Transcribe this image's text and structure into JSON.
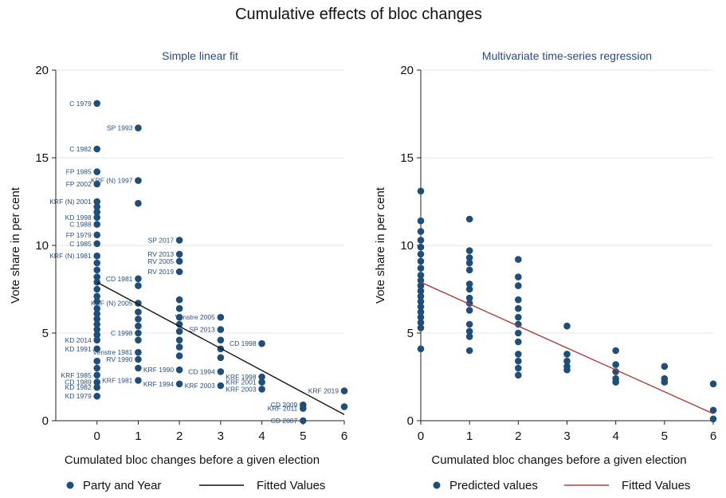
{
  "figure_title": "Cumulative effects of bloc changes",
  "colors": {
    "points": "#1f4e79",
    "fit_left": "#111111",
    "fit_right": "#a8403f",
    "grid": "#e4e4e4"
  },
  "chart_data": [
    {
      "type": "scatter",
      "title": "Simple linear fit",
      "xlabel": "Cumulated bloc changes before a given election",
      "ylabel": "Vote share in per cent",
      "xlim": [
        -1,
        6
      ],
      "ylim": [
        0,
        20
      ],
      "xticks": [
        0,
        1,
        2,
        3,
        4,
        5,
        6
      ],
      "yticks": [
        0,
        5,
        10,
        15,
        20
      ],
      "grid": true,
      "legend": {
        "position": "bottom",
        "entries": [
          "Party and Year",
          "Fitted Values"
        ]
      },
      "series": [
        {
          "name": "Party and Year",
          "kind": "points",
          "points": [
            {
              "x": 0,
              "y": 18.1,
              "label": "C 1979"
            },
            {
              "x": 0,
              "y": 15.5,
              "label": "C 1982"
            },
            {
              "x": 0,
              "y": 14.2,
              "label": "FP 1985"
            },
            {
              "x": 0,
              "y": 13.5,
              "label": "FP 2002"
            },
            {
              "x": 0,
              "y": 12.5,
              "label": "KRF (N) 2001"
            },
            {
              "x": 0,
              "y": 12.2,
              "label": ""
            },
            {
              "x": 0,
              "y": 11.9,
              "label": ""
            },
            {
              "x": 0,
              "y": 11.6,
              "label": "KD 1998"
            },
            {
              "x": 0,
              "y": 11.2,
              "label": "C 1988"
            },
            {
              "x": 0,
              "y": 10.6,
              "label": "FP 1979"
            },
            {
              "x": 0,
              "y": 10.1,
              "label": "C 1985"
            },
            {
              "x": 0,
              "y": 9.4,
              "label": "KRF (N) 1981"
            },
            {
              "x": 0,
              "y": 9.0,
              "label": ""
            },
            {
              "x": 0,
              "y": 8.6,
              "label": ""
            },
            {
              "x": 0,
              "y": 8.2,
              "label": ""
            },
            {
              "x": 0,
              "y": 7.9,
              "label": ""
            },
            {
              "x": 0,
              "y": 7.5,
              "label": ""
            },
            {
              "x": 0,
              "y": 7.1,
              "label": ""
            },
            {
              "x": 0,
              "y": 6.8,
              "label": ""
            },
            {
              "x": 0,
              "y": 6.4,
              "label": ""
            },
            {
              "x": 0,
              "y": 6.1,
              "label": ""
            },
            {
              "x": 0,
              "y": 5.8,
              "label": ""
            },
            {
              "x": 0,
              "y": 5.5,
              "label": ""
            },
            {
              "x": 0,
              "y": 5.2,
              "label": ""
            },
            {
              "x": 0,
              "y": 4.9,
              "label": ""
            },
            {
              "x": 0,
              "y": 4.6,
              "label": "KD 2014"
            },
            {
              "x": 0,
              "y": 4.1,
              "label": "KD 1991"
            },
            {
              "x": 0,
              "y": 3.4,
              "label": ""
            },
            {
              "x": 0,
              "y": 3.0,
              "label": ""
            },
            {
              "x": 0,
              "y": 2.6,
              "label": "KRF 1985"
            },
            {
              "x": 0,
              "y": 2.2,
              "label": "CD 1989"
            },
            {
              "x": 0,
              "y": 1.9,
              "label": "KD 1982"
            },
            {
              "x": 0,
              "y": 1.4,
              "label": "KD 1979"
            },
            {
              "x": 1,
              "y": 16.7,
              "label": "SP 1993"
            },
            {
              "x": 1,
              "y": 13.7,
              "label": "KRF (N) 1997"
            },
            {
              "x": 1,
              "y": 12.4,
              "label": ""
            },
            {
              "x": 1,
              "y": 8.1,
              "label": "CD 1981"
            },
            {
              "x": 1,
              "y": 7.7,
              "label": ""
            },
            {
              "x": 1,
              "y": 6.7,
              "label": "KRF (N) 2005"
            },
            {
              "x": 1,
              "y": 6.2,
              "label": ""
            },
            {
              "x": 1,
              "y": 5.8,
              "label": ""
            },
            {
              "x": 1,
              "y": 5.4,
              "label": ""
            },
            {
              "x": 1,
              "y": 5.0,
              "label": "C 1998"
            },
            {
              "x": 1,
              "y": 4.6,
              "label": ""
            },
            {
              "x": 1,
              "y": 3.9,
              "label": "Venstre 1981"
            },
            {
              "x": 1,
              "y": 3.5,
              "label": "RV 1990"
            },
            {
              "x": 1,
              "y": 3.0,
              "label": ""
            },
            {
              "x": 1,
              "y": 2.3,
              "label": "KRF 1981"
            },
            {
              "x": 2,
              "y": 10.3,
              "label": "SP 2017"
            },
            {
              "x": 2,
              "y": 9.5,
              "label": "RV 2013"
            },
            {
              "x": 2,
              "y": 9.1,
              "label": "RV 2005"
            },
            {
              "x": 2,
              "y": 8.5,
              "label": "RV 2019"
            },
            {
              "x": 2,
              "y": 6.9,
              "label": ""
            },
            {
              "x": 2,
              "y": 6.4,
              "label": ""
            },
            {
              "x": 2,
              "y": 5.9,
              "label": ""
            },
            {
              "x": 2,
              "y": 5.5,
              "label": ""
            },
            {
              "x": 2,
              "y": 5.1,
              "label": ""
            },
            {
              "x": 2,
              "y": 4.6,
              "label": ""
            },
            {
              "x": 2,
              "y": 4.2,
              "label": ""
            },
            {
              "x": 2,
              "y": 3.7,
              "label": ""
            },
            {
              "x": 2,
              "y": 2.9,
              "label": "KRF 1990"
            },
            {
              "x": 2,
              "y": 2.1,
              "label": "KRF 1994"
            },
            {
              "x": 3,
              "y": 5.9,
              "label": "Venstre 2005"
            },
            {
              "x": 3,
              "y": 5.2,
              "label": "SP 2013"
            },
            {
              "x": 3,
              "y": 4.6,
              "label": ""
            },
            {
              "x": 3,
              "y": 4.1,
              "label": ""
            },
            {
              "x": 3,
              "y": 3.6,
              "label": ""
            },
            {
              "x": 3,
              "y": 2.8,
              "label": "CD 1994"
            },
            {
              "x": 3,
              "y": 2.0,
              "label": "KRF 2003"
            },
            {
              "x": 4,
              "y": 4.4,
              "label": "CD 1998"
            },
            {
              "x": 4,
              "y": 2.5,
              "label": "KRF 1998"
            },
            {
              "x": 4,
              "y": 2.2,
              "label": "KRF 2001"
            },
            {
              "x": 4,
              "y": 1.8,
              "label": "KRF 2003"
            },
            {
              "x": 5,
              "y": 0.9,
              "label": "CD 2009"
            },
            {
              "x": 5,
              "y": 0.7,
              "label": "KRF 2011"
            },
            {
              "x": 5,
              "y": 0.0,
              "label": "CD 2007"
            },
            {
              "x": 6,
              "y": 1.7,
              "label": "KRF 2019"
            },
            {
              "x": 6,
              "y": 0.8,
              "label": ""
            }
          ]
        },
        {
          "name": "Fitted Values",
          "kind": "line",
          "x": [
            0,
            6
          ],
          "y": [
            7.9,
            0.35
          ]
        }
      ]
    },
    {
      "type": "scatter",
      "title": "Multivariate time-series regression",
      "xlabel": "Cumulated bloc changes before a given election",
      "ylabel": "Vote share in per cent",
      "xlim": [
        0,
        6
      ],
      "ylim": [
        0,
        20
      ],
      "xticks": [
        0,
        1,
        2,
        3,
        4,
        5,
        6
      ],
      "yticks": [
        0,
        5,
        10,
        15,
        20
      ],
      "grid": true,
      "legend": {
        "position": "bottom",
        "entries": [
          "Predicted values",
          "Fitted Values"
        ]
      },
      "series": [
        {
          "name": "Predicted values",
          "kind": "points",
          "points": [
            {
              "x": 0,
              "y": 13.1
            },
            {
              "x": 0,
              "y": 11.4
            },
            {
              "x": 0,
              "y": 10.8
            },
            {
              "x": 0,
              "y": 10.3
            },
            {
              "x": 0,
              "y": 9.9
            },
            {
              "x": 0,
              "y": 9.5
            },
            {
              "x": 0,
              "y": 9.1
            },
            {
              "x": 0,
              "y": 8.7
            },
            {
              "x": 0,
              "y": 8.3
            },
            {
              "x": 0,
              "y": 8.0
            },
            {
              "x": 0,
              "y": 7.7
            },
            {
              "x": 0,
              "y": 7.4
            },
            {
              "x": 0,
              "y": 7.1
            },
            {
              "x": 0,
              "y": 6.8
            },
            {
              "x": 0,
              "y": 6.5
            },
            {
              "x": 0,
              "y": 6.2
            },
            {
              "x": 0,
              "y": 5.9
            },
            {
              "x": 0,
              "y": 5.6
            },
            {
              "x": 0,
              "y": 5.3
            },
            {
              "x": 0,
              "y": 4.1
            },
            {
              "x": 1,
              "y": 11.5
            },
            {
              "x": 1,
              "y": 9.7
            },
            {
              "x": 1,
              "y": 9.3
            },
            {
              "x": 1,
              "y": 9.0
            },
            {
              "x": 1,
              "y": 8.6
            },
            {
              "x": 1,
              "y": 7.8
            },
            {
              "x": 1,
              "y": 7.5
            },
            {
              "x": 1,
              "y": 7.0
            },
            {
              "x": 1,
              "y": 6.7
            },
            {
              "x": 1,
              "y": 6.3
            },
            {
              "x": 1,
              "y": 5.5
            },
            {
              "x": 1,
              "y": 5.1
            },
            {
              "x": 1,
              "y": 4.8
            },
            {
              "x": 1,
              "y": 4.0
            },
            {
              "x": 2,
              "y": 9.2
            },
            {
              "x": 2,
              "y": 8.2
            },
            {
              "x": 2,
              "y": 7.7
            },
            {
              "x": 2,
              "y": 6.9
            },
            {
              "x": 2,
              "y": 6.4
            },
            {
              "x": 2,
              "y": 5.9
            },
            {
              "x": 2,
              "y": 5.5
            },
            {
              "x": 2,
              "y": 5.0
            },
            {
              "x": 2,
              "y": 4.5
            },
            {
              "x": 2,
              "y": 3.8
            },
            {
              "x": 2,
              "y": 3.4
            },
            {
              "x": 2,
              "y": 3.0
            },
            {
              "x": 2,
              "y": 2.6
            },
            {
              "x": 3,
              "y": 5.4
            },
            {
              "x": 3,
              "y": 3.8
            },
            {
              "x": 3,
              "y": 3.4
            },
            {
              "x": 3,
              "y": 3.1
            },
            {
              "x": 3,
              "y": 2.9
            },
            {
              "x": 4,
              "y": 4.0
            },
            {
              "x": 4,
              "y": 3.2
            },
            {
              "x": 4,
              "y": 2.8
            },
            {
              "x": 4,
              "y": 2.4
            },
            {
              "x": 4,
              "y": 2.2
            },
            {
              "x": 5,
              "y": 3.1
            },
            {
              "x": 5,
              "y": 2.4
            },
            {
              "x": 5,
              "y": 2.2
            },
            {
              "x": 6,
              "y": 2.1
            },
            {
              "x": 6,
              "y": 0.6
            },
            {
              "x": 6,
              "y": 0.1
            }
          ]
        },
        {
          "name": "Fitted Values",
          "kind": "line",
          "x": [
            0,
            6
          ],
          "y": [
            7.9,
            0.4
          ]
        }
      ]
    }
  ]
}
